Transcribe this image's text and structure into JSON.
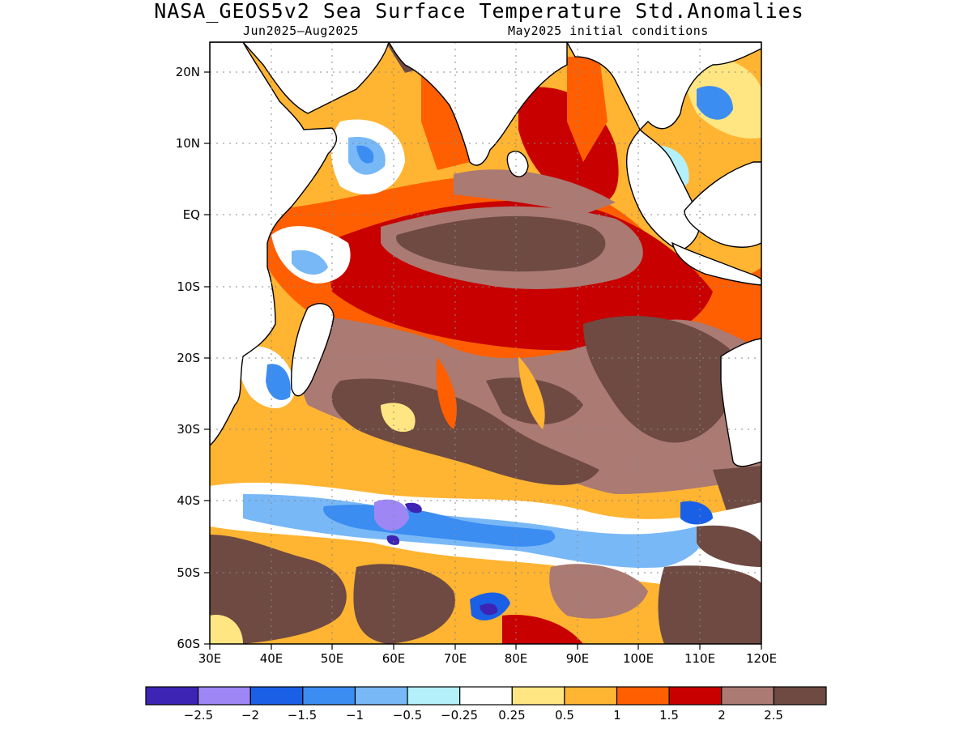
{
  "header": {
    "title": "NASA_GEOS5v2 Sea Surface Temperature Std.Anomalies",
    "period": "Jun2025–Aug2025",
    "init": "May2025 initial conditions"
  },
  "map": {
    "lon_range": [
      30,
      120
    ],
    "lat_range": [
      -60,
      24
    ],
    "lat_ticks": [
      "20N",
      "10N",
      "EQ",
      "10S",
      "20S",
      "30S",
      "40S",
      "50S",
      "60S"
    ],
    "lon_ticks": [
      "30E",
      "40E",
      "50E",
      "60E",
      "70E",
      "80E",
      "90E",
      "100E",
      "110E",
      "120E"
    ],
    "gridlines": true,
    "land_color": "#ffffff",
    "regions_text": "Anomaly pattern: strong warm anomalies (1.5 to >2.5) over central/eastern tropical and subtropical Indian Ocean; cool anomalies (-0.5 to -2.5) band near 40S-47S between 45E and 110E; cool patches near Arabian Sea coast."
  },
  "colorbar": {
    "colors": [
      "#3d24b4",
      "#9e87f5",
      "#1a60e6",
      "#3c8df2",
      "#78b8f7",
      "#b4f0fa",
      "#ffffff",
      "#ffe682",
      "#ffb432",
      "#ff5f00",
      "#c80000",
      "#aa7a73",
      "#6e4a42"
    ],
    "labels": [
      "−2.5",
      "−2",
      "−1.5",
      "−1",
      "−0.5",
      "−0.25",
      "0.25",
      "0.5",
      "1",
      "1.5",
      "2",
      "2.5"
    ]
  }
}
